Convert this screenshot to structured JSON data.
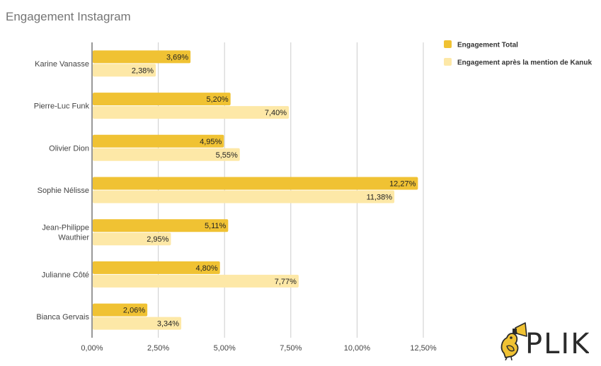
{
  "chart_data": {
    "type": "bar",
    "orientation": "horizontal",
    "title": "Engagement Instagram",
    "categories": [
      [
        "Karine Vanasse"
      ],
      [
        "Pierre-Luc Funk"
      ],
      [
        "Olivier Dion"
      ],
      [
        "Sophie Nélisse"
      ],
      [
        "Jean-Philippe",
        "Wauthier"
      ],
      [
        "Julianne Côté"
      ],
      [
        "Bianca Gervais"
      ]
    ],
    "series": [
      {
        "name": "Engagement Total",
        "color": "#F0C233",
        "values": [
          3.69,
          5.2,
          4.95,
          12.27,
          5.11,
          4.8,
          2.06
        ],
        "labels": [
          "3,69%",
          "5,20%",
          "4,95%",
          "12,27%",
          "5,11%",
          "4,80%",
          "2,06%"
        ]
      },
      {
        "name": "Engagement après la mention de Kanuk",
        "color": "#FDE8A7",
        "values": [
          2.38,
          7.4,
          5.55,
          11.38,
          2.95,
          7.77,
          3.34
        ],
        "labels": [
          "2,38%",
          "7,40%",
          "5,55%",
          "11,38%",
          "2,95%",
          "7,77%",
          "3,34%"
        ]
      }
    ],
    "xlim": [
      0,
      12.5
    ],
    "ticks": [
      0,
      2.5,
      5,
      7.5,
      10,
      12.5
    ],
    "tick_labels": [
      "0,00%",
      "2,50%",
      "5,00%",
      "7,50%",
      "10,00%",
      "12,50%"
    ],
    "grid": true,
    "legend_position": "top-right"
  },
  "logo": {
    "text": "PLIK",
    "bird_icon": "bird-megaphone-icon"
  }
}
